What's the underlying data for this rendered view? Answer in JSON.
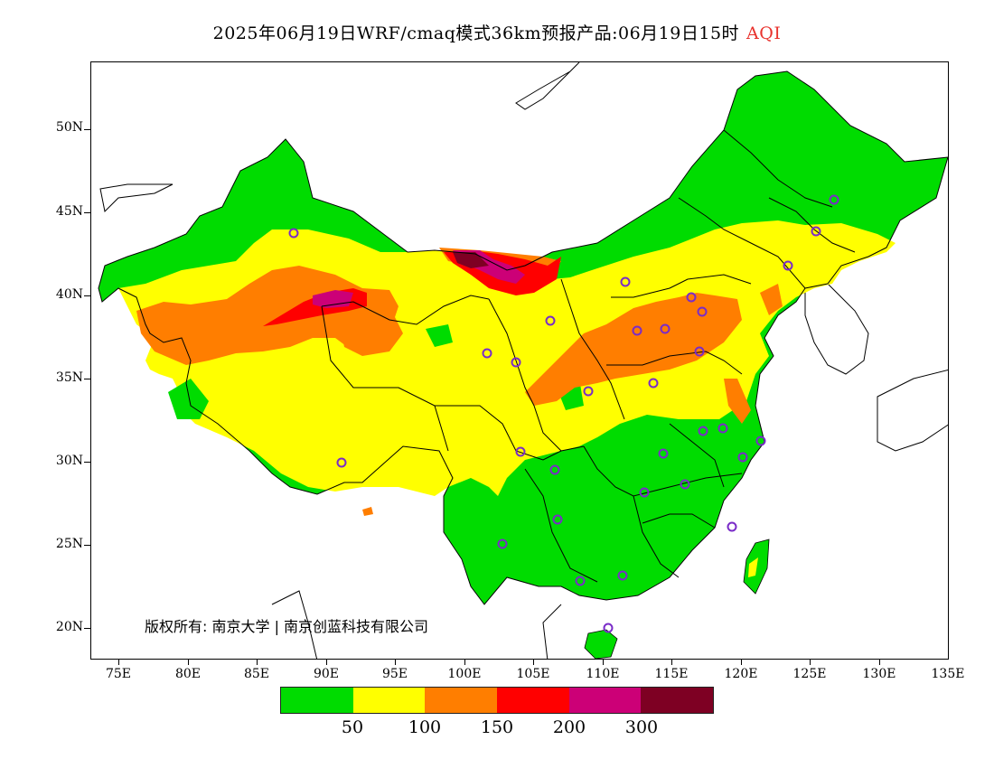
{
  "title": {
    "text": "2025年06月19日WRF/cmaq模式36km预报产品:06月19日15时",
    "variable": "AQI"
  },
  "map": {
    "lat_labels": [
      "50N",
      "45N",
      "40N",
      "35N",
      "30N",
      "25N",
      "20N"
    ],
    "lon_labels": [
      "75E",
      "80E",
      "85E",
      "90E",
      "95E",
      "100E",
      "105E",
      "110E",
      "115E",
      "120E",
      "125E",
      "130E",
      "135E"
    ],
    "land_color": "#ffffff",
    "copyright": "版权所有: 南京大学 | 南京创蓝科技有限公司"
  },
  "legend": {
    "colors": [
      "#00dc00",
      "#ffff00",
      "#ff7e00",
      "#ff0000",
      "#cc0077",
      "#7e0023"
    ],
    "thresholds": [
      "50",
      "100",
      "150",
      "200",
      "300"
    ]
  }
}
